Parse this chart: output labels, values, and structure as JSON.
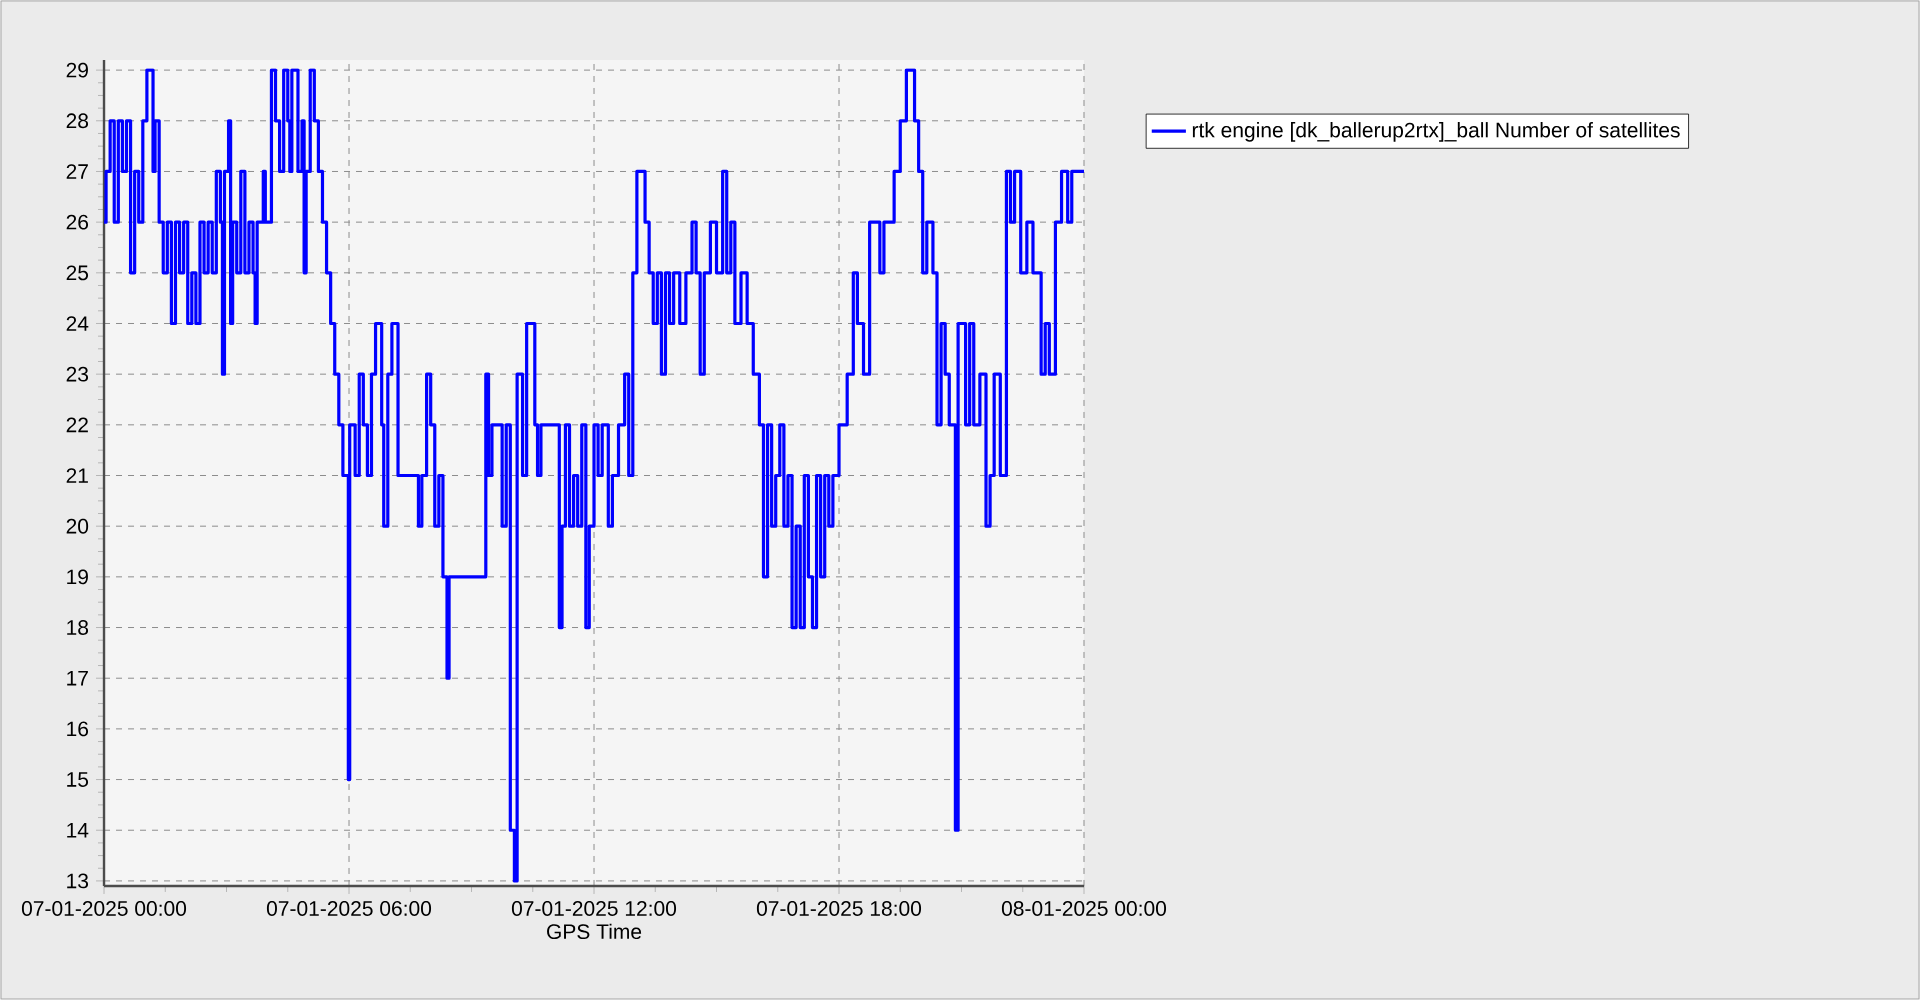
{
  "chart_data": {
    "type": "step",
    "xlabel": "GPS Time",
    "x": [
      "2025-01-07T00:00",
      "2025-01-07T00:03",
      "2025-01-07T00:09",
      "2025-01-07T00:15",
      "2025-01-07T00:21",
      "2025-01-07T00:27",
      "2025-01-07T00:33",
      "2025-01-07T00:39",
      "2025-01-07T00:45",
      "2025-01-07T00:51",
      "2025-01-07T00:57",
      "2025-01-07T01:03",
      "2025-01-07T01:12",
      "2025-01-07T01:15",
      "2025-01-07T01:21",
      "2025-01-07T01:27",
      "2025-01-07T01:33",
      "2025-01-07T01:39",
      "2025-01-07T01:45",
      "2025-01-07T01:51",
      "2025-01-07T01:57",
      "2025-01-07T02:03",
      "2025-01-07T02:09",
      "2025-01-07T02:15",
      "2025-01-07T02:21",
      "2025-01-07T02:27",
      "2025-01-07T02:33",
      "2025-01-07T02:39",
      "2025-01-07T02:45",
      "2025-01-07T02:51",
      "2025-01-07T02:54",
      "2025-01-07T02:57",
      "2025-01-07T03:03",
      "2025-01-07T03:06",
      "2025-01-07T03:09",
      "2025-01-07T03:15",
      "2025-01-07T03:21",
      "2025-01-07T03:27",
      "2025-01-07T03:33",
      "2025-01-07T03:39",
      "2025-01-07T03:42",
      "2025-01-07T03:45",
      "2025-01-07T03:54",
      "2025-01-07T03:57",
      "2025-01-07T04:06",
      "2025-01-07T04:12",
      "2025-01-07T04:18",
      "2025-01-07T04:24",
      "2025-01-07T04:30",
      "2025-01-07T04:33",
      "2025-01-07T04:36",
      "2025-01-07T04:45",
      "2025-01-07T04:51",
      "2025-01-07T04:54",
      "2025-01-07T04:57",
      "2025-01-07T05:03",
      "2025-01-07T05:09",
      "2025-01-07T05:15",
      "2025-01-07T05:21",
      "2025-01-07T05:27",
      "2025-01-07T05:33",
      "2025-01-07T05:39",
      "2025-01-07T05:45",
      "2025-01-07T05:51",
      "2025-01-07T05:59",
      "2025-01-07T06:01",
      "2025-01-07T06:09",
      "2025-01-07T06:15",
      "2025-01-07T06:21",
      "2025-01-07T06:27",
      "2025-01-07T06:33",
      "2025-01-07T06:39",
      "2025-01-07T06:48",
      "2025-01-07T06:51",
      "2025-01-07T06:57",
      "2025-01-07T07:03",
      "2025-01-07T07:12",
      "2025-01-07T07:42",
      "2025-01-07T07:47",
      "2025-01-07T07:54",
      "2025-01-07T08:00",
      "2025-01-07T08:06",
      "2025-01-07T08:12",
      "2025-01-07T08:18",
      "2025-01-07T08:24",
      "2025-01-07T08:27",
      "2025-01-07T09:21",
      "2025-01-07T09:25",
      "2025-01-07T09:30",
      "2025-01-07T09:45",
      "2025-01-07T09:51",
      "2025-01-07T09:57",
      "2025-01-07T10:03",
      "2025-01-07T10:07",
      "2025-01-07T10:15",
      "2025-01-07T10:21",
      "2025-01-07T10:33",
      "2025-01-07T10:37",
      "2025-01-07T10:42",
      "2025-01-07T11:09",
      "2025-01-07T11:13",
      "2025-01-07T11:18",
      "2025-01-07T11:24",
      "2025-01-07T11:30",
      "2025-01-07T11:36",
      "2025-01-07T11:42",
      "2025-01-07T11:48",
      "2025-01-07T11:53",
      "2025-01-07T12:00",
      "2025-01-07T12:06",
      "2025-01-07T12:12",
      "2025-01-07T12:21",
      "2025-01-07T12:27",
      "2025-01-07T12:36",
      "2025-01-07T12:45",
      "2025-01-07T12:51",
      "2025-01-07T12:57",
      "2025-01-07T13:03",
      "2025-01-07T13:15",
      "2025-01-07T13:21",
      "2025-01-07T13:27",
      "2025-01-07T13:33",
      "2025-01-07T13:39",
      "2025-01-07T13:45",
      "2025-01-07T13:51",
      "2025-01-07T13:57",
      "2025-01-07T14:06",
      "2025-01-07T14:15",
      "2025-01-07T14:24",
      "2025-01-07T14:30",
      "2025-01-07T14:36",
      "2025-01-07T14:42",
      "2025-01-07T14:51",
      "2025-01-07T15:00",
      "2025-01-07T15:09",
      "2025-01-07T15:15",
      "2025-01-07T15:21",
      "2025-01-07T15:27",
      "2025-01-07T15:36",
      "2025-01-07T15:45",
      "2025-01-07T15:54",
      "2025-01-07T16:03",
      "2025-01-07T16:09",
      "2025-01-07T16:15",
      "2025-01-07T16:21",
      "2025-01-07T16:27",
      "2025-01-07T16:33",
      "2025-01-07T16:39",
      "2025-01-07T16:45",
      "2025-01-07T16:51",
      "2025-01-07T16:57",
      "2025-01-07T17:03",
      "2025-01-07T17:09",
      "2025-01-07T17:15",
      "2025-01-07T17:21",
      "2025-01-07T17:27",
      "2025-01-07T17:33",
      "2025-01-07T17:39",
      "2025-01-07T17:45",
      "2025-01-07T17:51",
      "2025-01-07T18:00",
      "2025-01-07T18:12",
      "2025-01-07T18:21",
      "2025-01-07T18:27",
      "2025-01-07T18:36",
      "2025-01-07T18:45",
      "2025-01-07T19:00",
      "2025-01-07T19:06",
      "2025-01-07T19:21",
      "2025-01-07T19:30",
      "2025-01-07T19:39",
      "2025-01-07T19:51",
      "2025-01-07T19:57",
      "2025-01-07T20:03",
      "2025-01-07T20:09",
      "2025-01-07T20:18",
      "2025-01-07T20:24",
      "2025-01-07T20:30",
      "2025-01-07T20:36",
      "2025-01-07T20:42",
      "2025-01-07T20:51",
      "2025-01-07T20:55",
      "2025-01-07T21:06",
      "2025-01-07T21:12",
      "2025-01-07T21:18",
      "2025-01-07T21:27",
      "2025-01-07T21:36",
      "2025-01-07T21:42",
      "2025-01-07T21:48",
      "2025-01-07T21:57",
      "2025-01-07T22:06",
      "2025-01-07T22:12",
      "2025-01-07T22:18",
      "2025-01-07T22:27",
      "2025-01-07T22:36",
      "2025-01-07T22:45",
      "2025-01-07T22:57",
      "2025-01-07T23:03",
      "2025-01-07T23:09",
      "2025-01-07T23:18",
      "2025-01-07T23:27",
      "2025-01-07T23:36",
      "2025-01-07T23:42",
      "2025-01-08T00:00"
    ],
    "series": [
      {
        "name": "rtk engine [dk_ballerup2rtx]_ball Number of satellites",
        "color": "#0000ff",
        "values": [
          26,
          27,
          28,
          26,
          28,
          27,
          28,
          25,
          27,
          26,
          28,
          29,
          27,
          28,
          26,
          25,
          26,
          24,
          26,
          25,
          26,
          24,
          25,
          24,
          26,
          25,
          26,
          25,
          27,
          26,
          23,
          27,
          28,
          24,
          26,
          25,
          27,
          25,
          26,
          25,
          24,
          26,
          27,
          26,
          29,
          28,
          27,
          29,
          28,
          27,
          29,
          27,
          28,
          25,
          27,
          29,
          28,
          27,
          26,
          25,
          24,
          23,
          22,
          21,
          15,
          22,
          21,
          23,
          22,
          21,
          23,
          24,
          22,
          20,
          23,
          24,
          21,
          20,
          21,
          23,
          22,
          20,
          21,
          19,
          17,
          19,
          23,
          21,
          22,
          20,
          22,
          14,
          13,
          23,
          21,
          24,
          22,
          21,
          22,
          18,
          20,
          22,
          20,
          21,
          20,
          22,
          18,
          20,
          22,
          21,
          22,
          20,
          21,
          22,
          23,
          21,
          25,
          27,
          26,
          25,
          24,
          25,
          23,
          25,
          24,
          25,
          24,
          25,
          26,
          25,
          23,
          25,
          26,
          25,
          27,
          25,
          26,
          24,
          25,
          24,
          23,
          22,
          19,
          22,
          20,
          21,
          22,
          20,
          21,
          18,
          20,
          18,
          21,
          19,
          18,
          21,
          19,
          21,
          20,
          21,
          22,
          23,
          25,
          24,
          23,
          26,
          25,
          26,
          27,
          28,
          29,
          28,
          27,
          25,
          26,
          25,
          22,
          24,
          23,
          22,
          14,
          24,
          22,
          24,
          22,
          23,
          20,
          21,
          23,
          21,
          27,
          26,
          27,
          25,
          26,
          25,
          23,
          24,
          23,
          26,
          27,
          26,
          27,
          27
        ]
      }
    ],
    "xlim": [
      "2025-01-07T00:00",
      "2025-01-08T00:00"
    ],
    "xticks": [
      {
        "value": "2025-01-07T00:00",
        "label": "07-01-2025 00:00"
      },
      {
        "value": "2025-01-07T06:00",
        "label": "07-01-2025 06:00"
      },
      {
        "value": "2025-01-07T12:00",
        "label": "07-01-2025 12:00"
      },
      {
        "value": "2025-01-07T18:00",
        "label": "07-01-2025 18:00"
      },
      {
        "value": "2025-01-08T00:00",
        "label": "08-01-2025 00:00"
      }
    ],
    "ylim": [
      12.9,
      29.2
    ],
    "yticks": [
      13,
      14,
      15,
      16,
      17,
      18,
      19,
      20,
      21,
      22,
      23,
      24,
      25,
      26,
      27,
      28,
      29
    ],
    "grid": true,
    "legend": "top right",
    "marker": "none",
    "line_style": "solid"
  }
}
